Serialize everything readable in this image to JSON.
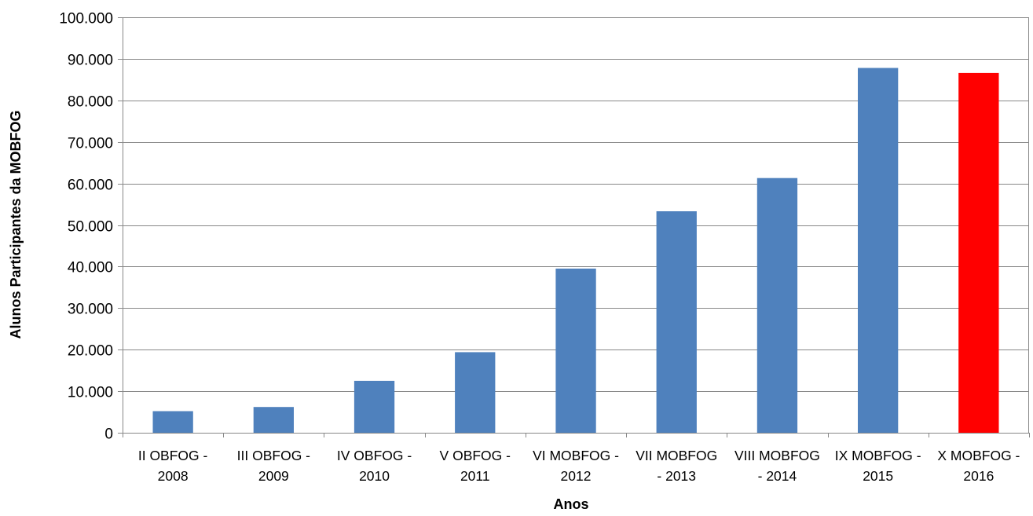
{
  "chart_data": {
    "type": "bar",
    "title": "",
    "xlabel": "Anos",
    "ylabel": "Alunos Participantes da MOBFOG",
    "ylim": [
      0,
      100000
    ],
    "yticks": [
      0,
      10000,
      20000,
      30000,
      40000,
      50000,
      60000,
      70000,
      80000,
      90000,
      100000
    ],
    "ytick_labels": [
      "0",
      "10.000",
      "20.000",
      "30.000",
      "40.000",
      "50.000",
      "60.000",
      "70.000",
      "80.000",
      "90.000",
      "100.000"
    ],
    "grid": true,
    "legend": "none",
    "categories": [
      [
        "II OBFOG -",
        "2008"
      ],
      [
        "III OBFOG -",
        "2009"
      ],
      [
        "IV OBFOG -",
        "2010"
      ],
      [
        "V OBFOG -",
        "2011"
      ],
      [
        "VI MOBFOG -",
        "2012"
      ],
      [
        "VII MOBFOG",
        "- 2013"
      ],
      [
        "VIII MOBFOG",
        "- 2014"
      ],
      [
        "IX MOBFOG -",
        "2015"
      ],
      [
        "X MOBFOG -",
        "2016"
      ]
    ],
    "values": [
      5200,
      6200,
      12500,
      19400,
      39500,
      53300,
      61300,
      87800,
      86600
    ],
    "colors": [
      "#4f81bd",
      "#4f81bd",
      "#4f81bd",
      "#4f81bd",
      "#4f81bd",
      "#4f81bd",
      "#4f81bd",
      "#4f81bd",
      "#ff0000"
    ]
  }
}
